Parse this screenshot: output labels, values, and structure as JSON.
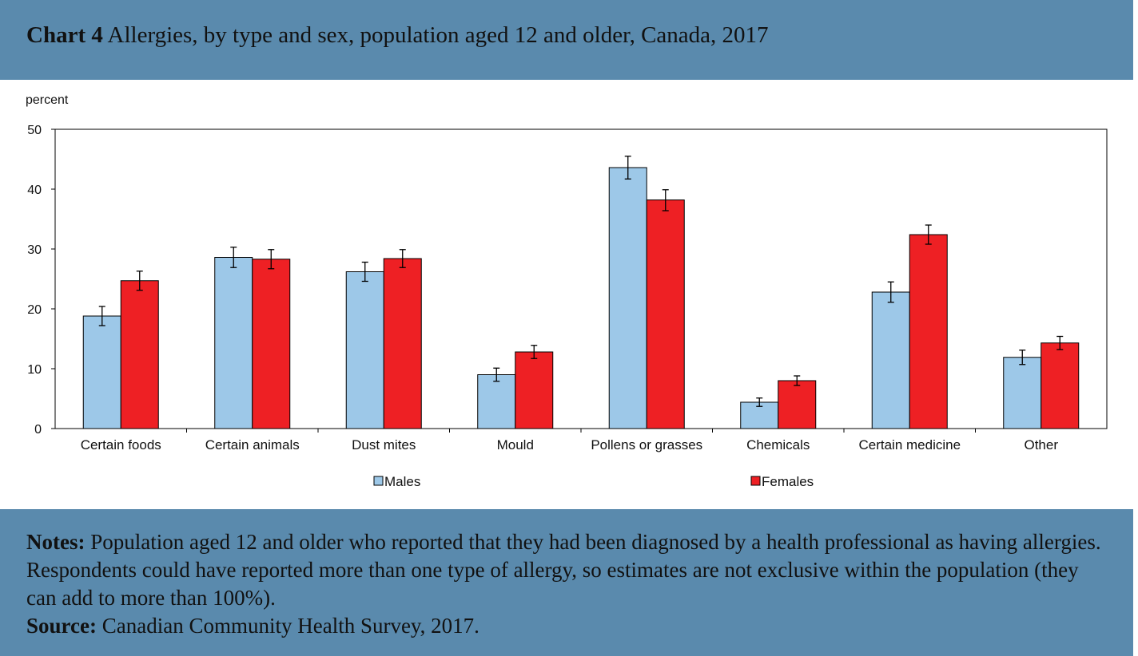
{
  "header": {
    "title_prefix": "Chart 4",
    "title": "Allergies, by type and sex, population aged 12 and older, Canada, 2017"
  },
  "chart_data": {
    "type": "bar",
    "title": "Chart 4 Allergies, by type and sex, population aged 12 and older, Canada, 2017",
    "ylabel": "percent",
    "xlabel": "",
    "ylim": [
      0,
      50
    ],
    "yticks": [
      "0",
      "10",
      "20",
      "30",
      "40",
      "50"
    ],
    "categories": [
      "Certain foods",
      "Certain animals",
      "Dust mites",
      "Mould",
      "Pollens or grasses",
      "Chemicals",
      "Certain medicine",
      "Other"
    ],
    "series": [
      {
        "name": "Males",
        "color": "#9dc8e8",
        "values": [
          18.8,
          28.6,
          26.2,
          9.0,
          43.6,
          4.4,
          22.8,
          11.9
        ],
        "error_low": [
          17.2,
          26.9,
          24.6,
          7.9,
          41.7,
          3.7,
          21.1,
          10.7
        ],
        "error_high": [
          20.4,
          30.3,
          27.8,
          10.1,
          45.5,
          5.1,
          24.5,
          13.1
        ]
      },
      {
        "name": "Females",
        "color": "#ee2024",
        "values": [
          24.7,
          28.3,
          28.4,
          12.8,
          38.2,
          8.0,
          32.4,
          14.3
        ],
        "error_low": [
          23.1,
          26.7,
          26.9,
          11.7,
          36.4,
          7.2,
          30.8,
          13.2
        ],
        "error_high": [
          26.3,
          29.9,
          29.9,
          13.9,
          39.9,
          8.8,
          34.0,
          15.4
        ]
      }
    ],
    "legend": "bottom",
    "grid": false
  },
  "notes": {
    "notes_label": "Notes:",
    "notes_text": "Population aged 12 and older who reported that they had been diagnosed by a health professional as having allergies. Respondents could have reported more than one type of allergy, so estimates are not exclusive within the population (they can add to more than 100%).",
    "source_label": "Source:",
    "source_text": "Canadian Community Health Survey, 2017."
  }
}
